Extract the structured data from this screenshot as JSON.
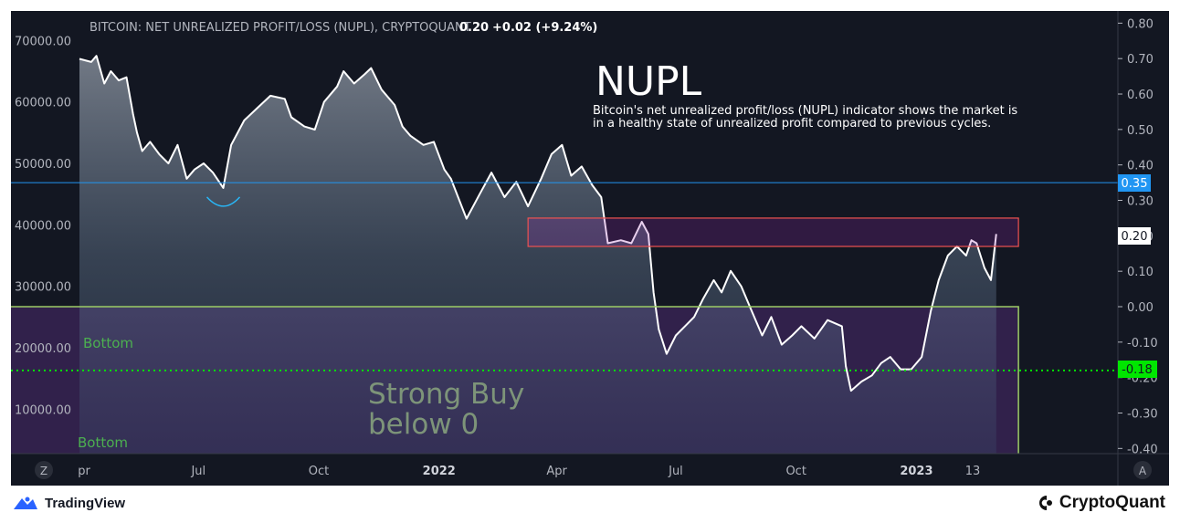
{
  "header": {
    "series_title": "BITCOIN: NET UNREALIZED PROFIT/LOSS (NUPL), CRYPTOQUANT",
    "last_value": "0.20",
    "change": "+0.02 (+9.24%)"
  },
  "annotation": {
    "heading": "NUPL",
    "line1": "Bitcoin's net unrealized profit/loss (NUPL) indicator shows the market is",
    "line2": "in a healthy state of unrealized profit compared to previous cycles."
  },
  "zone_labels": {
    "bottom_upper": "Bottom",
    "bottom_lower": "Bottom",
    "strong_buy_1": "Strong Buy",
    "strong_buy_2": "below 0"
  },
  "badges": {
    "level_035": "0.35",
    "current": "0.20",
    "level_neg018": "-0.18"
  },
  "footer": {
    "left_brand": "TradingView",
    "right_brand": "CryptoQuant",
    "left_icon": "tradingview-logo-icon",
    "right_icon": "cryptoquant-logo-icon"
  },
  "scale_buttons": {
    "left": "Z",
    "right": "A"
  },
  "colors": {
    "background": "#131722",
    "price_line": "#ffffff",
    "line_035": "#2196f3",
    "box_resistance": "#ef5350",
    "box_green": "#9ccc65",
    "dotted_green": "#00e600",
    "zone_fill": "#4a2a6e",
    "strong_buy_text": "#7d9479",
    "bottom_text": "#4caf50"
  },
  "chart_data": {
    "type": "area",
    "title": "BITCOIN: NET UNREALIZED PROFIT/LOSS (NUPL), CRYPTOQUANT",
    "left_axis": {
      "ticks": [
        10000,
        20000,
        30000,
        40000,
        50000,
        60000,
        70000
      ],
      "tick_labels": [
        "10000.00",
        "20000.00",
        "30000.00",
        "40000.00",
        "50000.00",
        "60000.00",
        "70000.00"
      ],
      "range": [
        5000,
        72000
      ]
    },
    "right_axis": {
      "ticks": [
        -0.4,
        -0.3,
        -0.2,
        -0.1,
        0,
        0.1,
        0.2,
        0.3,
        0.4,
        0.5,
        0.6,
        0.7,
        0.8
      ],
      "tick_labels": [
        "-0.40",
        "-0.30",
        "-0.20",
        "-0.10",
        "0.00",
        "0.10",
        "0.20",
        "0.30",
        "0.40",
        "0.50",
        "0.60",
        "0.70",
        "0.80"
      ],
      "range": [
        -0.44,
        0.82
      ]
    },
    "x_axis": {
      "labels": [
        "Apr",
        "Jul",
        "Oct",
        "2022",
        "Apr",
        "Jul",
        "Oct",
        "2023",
        "13"
      ],
      "label_texts": [
        "pr",
        "Jul",
        "Oct",
        "2022",
        "Apr",
        "Jul",
        "Oct",
        "2023",
        "13"
      ],
      "dates": [
        "2021-04-01",
        "2021-07-01",
        "2021-10-01",
        "2022-01-01",
        "2022-04-01",
        "2022-07-01",
        "2022-10-01",
        "2023-01-01",
        "2023-02-13"
      ]
    },
    "horizontal_levels": [
      {
        "value": 0.35,
        "style": "solid",
        "color": "#2196f3"
      },
      {
        "value": -0.18,
        "style": "dotted",
        "color": "#00e600"
      }
    ],
    "zones": [
      {
        "name": "resistance-box",
        "from": "2022-03-10",
        "to": "2023-03-20",
        "nupl_low": 0.17,
        "nupl_high": 0.25
      },
      {
        "name": "strong-buy-zone",
        "from": "2021-04-01",
        "to": "2023-03-20",
        "nupl_low": -0.44,
        "nupl_high": 0.0
      }
    ],
    "series": [
      {
        "name": "BTC price",
        "unit": "USD",
        "points": [
          [
            "2021-04-01",
            67000
          ],
          [
            "2021-04-10",
            66500
          ],
          [
            "2021-04-14",
            67500
          ],
          [
            "2021-04-20",
            63000
          ],
          [
            "2021-04-25",
            65000
          ],
          [
            "2021-05-01",
            63500
          ],
          [
            "2021-05-07",
            64000
          ],
          [
            "2021-05-12",
            58000
          ],
          [
            "2021-05-15",
            55000
          ],
          [
            "2021-05-19",
            52000
          ],
          [
            "2021-05-25",
            53500
          ],
          [
            "2021-06-01",
            51500
          ],
          [
            "2021-06-08",
            50000
          ],
          [
            "2021-06-15",
            53000
          ],
          [
            "2021-06-22",
            47500
          ],
          [
            "2021-06-28",
            49000
          ],
          [
            "2021-07-05",
            50000
          ],
          [
            "2021-07-12",
            48500
          ],
          [
            "2021-07-20",
            46000
          ],
          [
            "2021-07-26",
            53000
          ],
          [
            "2021-08-05",
            57000
          ],
          [
            "2021-08-15",
            59000
          ],
          [
            "2021-08-25",
            61000
          ],
          [
            "2021-09-05",
            60500
          ],
          [
            "2021-09-10",
            57500
          ],
          [
            "2021-09-20",
            56000
          ],
          [
            "2021-09-28",
            55500
          ],
          [
            "2021-10-05",
            60000
          ],
          [
            "2021-10-15",
            62500
          ],
          [
            "2021-10-20",
            65000
          ],
          [
            "2021-10-28",
            63000
          ],
          [
            "2021-11-05",
            64500
          ],
          [
            "2021-11-10",
            65500
          ],
          [
            "2021-11-18",
            62000
          ],
          [
            "2021-11-28",
            59500
          ],
          [
            "2021-12-04",
            56000
          ],
          [
            "2021-12-10",
            54500
          ],
          [
            "2021-12-20",
            53000
          ],
          [
            "2021-12-28",
            53500
          ],
          [
            "2022-01-05",
            49000
          ],
          [
            "2022-01-10",
            47500
          ],
          [
            "2022-01-22",
            41000
          ],
          [
            "2022-02-01",
            45000
          ],
          [
            "2022-02-10",
            48500
          ],
          [
            "2022-02-20",
            44500
          ],
          [
            "2022-03-01",
            47000
          ],
          [
            "2022-03-10",
            43000
          ],
          [
            "2022-03-20",
            47500
          ],
          [
            "2022-03-28",
            51500
          ],
          [
            "2022-04-05",
            53000
          ],
          [
            "2022-04-12",
            48000
          ],
          [
            "2022-04-20",
            49500
          ],
          [
            "2022-04-28",
            46500
          ],
          [
            "2022-05-05",
            44500
          ],
          [
            "2022-05-10",
            37000
          ],
          [
            "2022-05-20",
            37500
          ],
          [
            "2022-05-28",
            37000
          ],
          [
            "2022-06-05",
            40500
          ],
          [
            "2022-06-10",
            38500
          ],
          [
            "2022-06-14",
            29000
          ],
          [
            "2022-06-18",
            23000
          ],
          [
            "2022-06-24",
            19000
          ],
          [
            "2022-07-01",
            22000
          ],
          [
            "2022-07-08",
            23500
          ],
          [
            "2022-07-15",
            25000
          ],
          [
            "2022-07-22",
            28000
          ],
          [
            "2022-07-30",
            31000
          ],
          [
            "2022-08-05",
            29000
          ],
          [
            "2022-08-12",
            32500
          ],
          [
            "2022-08-20",
            30000
          ],
          [
            "2022-08-28",
            26000
          ],
          [
            "2022-09-05",
            22000
          ],
          [
            "2022-09-12",
            25000
          ],
          [
            "2022-09-20",
            20500
          ],
          [
            "2022-09-28",
            22000
          ],
          [
            "2022-10-05",
            23500
          ],
          [
            "2022-10-15",
            21500
          ],
          [
            "2022-10-25",
            24500
          ],
          [
            "2022-11-05",
            23500
          ],
          [
            "2022-11-08",
            17000
          ],
          [
            "2022-11-12",
            13000
          ],
          [
            "2022-11-20",
            14500
          ],
          [
            "2022-11-28",
            15500
          ],
          [
            "2022-12-05",
            17500
          ],
          [
            "2022-12-12",
            18500
          ],
          [
            "2022-12-20",
            16500
          ],
          [
            "2022-12-28",
            16500
          ],
          [
            "2023-01-05",
            18500
          ],
          [
            "2023-01-12",
            26000
          ],
          [
            "2023-01-18",
            31000
          ],
          [
            "2023-01-25",
            35000
          ],
          [
            "2023-02-01",
            36500
          ],
          [
            "2023-02-08",
            35000
          ],
          [
            "2023-02-12",
            37500
          ],
          [
            "2023-02-16",
            37000
          ],
          [
            "2023-02-22",
            33000
          ],
          [
            "2023-02-27",
            31000
          ],
          [
            "2023-03-03",
            38500
          ]
        ]
      }
    ]
  }
}
